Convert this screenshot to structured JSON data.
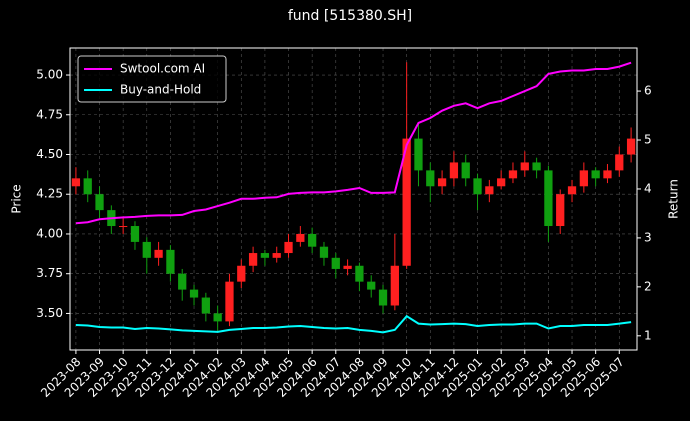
{
  "chart_data": {
    "type": "candlestick",
    "title": "fund [515380.SH]",
    "ylabel": "Price",
    "y2label": "Return",
    "categories": [
      "2023-08",
      null,
      "2023-09",
      null,
      "2023-10",
      null,
      "2023-11",
      null,
      "2023-12",
      null,
      "2024-01",
      null,
      "2024-02",
      null,
      "2024-03",
      null,
      "2024-04",
      null,
      "2024-05",
      null,
      "2024-06",
      null,
      "2024-07",
      null,
      "2024-08",
      null,
      "2024-09",
      null,
      "2024-10",
      null,
      "2024-11",
      null,
      "2024-12",
      null,
      "2025-01",
      null,
      "2025-02",
      null,
      "2025-03",
      null,
      "2025-04",
      null,
      "2025-05",
      null,
      "2025-06",
      null,
      "2025-07",
      null
    ],
    "open": [
      4.3,
      4.35,
      4.25,
      4.15,
      4.05,
      4.05,
      3.95,
      3.85,
      3.9,
      3.75,
      3.65,
      3.6,
      3.5,
      3.45,
      3.7,
      3.8,
      3.88,
      3.85,
      3.88,
      3.95,
      4.0,
      3.92,
      3.85,
      3.78,
      3.8,
      3.7,
      3.65,
      3.55,
      3.8,
      4.6,
      4.4,
      4.3,
      4.35,
      4.45,
      4.35,
      4.25,
      4.3,
      4.35,
      4.4,
      4.45,
      4.4,
      4.05,
      4.25,
      4.3,
      4.4,
      4.35,
      4.4,
      4.5
    ],
    "high": [
      4.42,
      4.4,
      4.3,
      4.18,
      4.1,
      4.08,
      3.98,
      3.95,
      3.93,
      3.78,
      3.68,
      3.63,
      3.55,
      3.75,
      3.84,
      3.92,
      3.9,
      3.92,
      4.0,
      4.05,
      4.04,
      3.95,
      3.88,
      3.84,
      3.82,
      3.74,
      3.68,
      4.0,
      5.08,
      4.7,
      4.45,
      4.4,
      4.52,
      4.5,
      4.38,
      4.34,
      4.4,
      4.45,
      4.52,
      4.48,
      4.43,
      4.28,
      4.34,
      4.45,
      4.42,
      4.44,
      4.55,
      4.67
    ],
    "low": [
      4.25,
      4.2,
      4.1,
      4.0,
      4.0,
      3.9,
      3.75,
      3.8,
      3.7,
      3.58,
      3.55,
      3.45,
      3.38,
      3.42,
      3.66,
      3.76,
      3.8,
      3.82,
      3.85,
      3.92,
      3.88,
      3.8,
      3.72,
      3.74,
      3.64,
      3.6,
      3.5,
      3.52,
      3.78,
      4.3,
      4.2,
      4.25,
      4.3,
      4.3,
      4.15,
      4.2,
      4.28,
      4.32,
      4.36,
      4.35,
      3.95,
      4.0,
      4.2,
      4.26,
      4.3,
      4.32,
      4.36,
      4.45
    ],
    "close": [
      4.35,
      4.25,
      4.15,
      4.05,
      4.05,
      3.95,
      3.85,
      3.9,
      3.75,
      3.65,
      3.6,
      3.5,
      3.45,
      3.7,
      3.8,
      3.88,
      3.85,
      3.88,
      3.95,
      4.0,
      3.92,
      3.85,
      3.78,
      3.8,
      3.7,
      3.65,
      3.55,
      3.8,
      4.6,
      4.4,
      4.3,
      4.35,
      4.45,
      4.35,
      4.25,
      4.3,
      4.35,
      4.4,
      4.45,
      4.4,
      4.05,
      4.25,
      4.3,
      4.4,
      4.35,
      4.4,
      4.5,
      4.6
    ],
    "up_color": "#ff2020",
    "down_color": "#10a010",
    "series": [
      {
        "name": "Swtool.com AI",
        "color": "#ff00ff",
        "axis": "y2",
        "values": [
          3.3,
          3.32,
          3.38,
          3.4,
          3.42,
          3.43,
          3.45,
          3.46,
          3.46,
          3.47,
          3.55,
          3.58,
          3.65,
          3.72,
          3.8,
          3.8,
          3.82,
          3.83,
          3.9,
          3.92,
          3.93,
          3.93,
          3.95,
          3.98,
          4.02,
          3.92,
          3.92,
          3.93,
          4.9,
          5.35,
          5.45,
          5.6,
          5.7,
          5.75,
          5.65,
          5.75,
          5.8,
          5.9,
          6.0,
          6.1,
          6.35,
          6.4,
          6.42,
          6.42,
          6.45,
          6.45,
          6.5,
          6.58
        ]
      },
      {
        "name": "Buy-and-Hold",
        "color": "#00ffff",
        "axis": "y2",
        "values": [
          1.22,
          1.21,
          1.18,
          1.17,
          1.17,
          1.14,
          1.16,
          1.15,
          1.13,
          1.11,
          1.1,
          1.09,
          1.08,
          1.12,
          1.14,
          1.16,
          1.16,
          1.17,
          1.19,
          1.2,
          1.18,
          1.16,
          1.15,
          1.16,
          1.12,
          1.1,
          1.07,
          1.12,
          1.4,
          1.25,
          1.23,
          1.24,
          1.25,
          1.24,
          1.2,
          1.22,
          1.23,
          1.23,
          1.25,
          1.25,
          1.15,
          1.2,
          1.2,
          1.22,
          1.22,
          1.22,
          1.25,
          1.28
        ]
      }
    ],
    "ylim": [
      3.27,
      5.17
    ],
    "yticks": [
      {
        "value": 3.5,
        "label": "3.50"
      },
      {
        "value": 3.75,
        "label": "3.75"
      },
      {
        "value": 4,
        "label": "4.00"
      },
      {
        "value": 4.25,
        "label": "4.25"
      },
      {
        "value": 4.5,
        "label": "4.50"
      },
      {
        "value": 4.75,
        "label": "4.75"
      },
      {
        "value": 5,
        "label": "5.00"
      }
    ],
    "y2lim": [
      0.71,
      6.88
    ],
    "y2ticks": [
      1,
      2,
      3,
      4,
      5,
      6
    ],
    "grid": true,
    "legend": "upper left"
  }
}
